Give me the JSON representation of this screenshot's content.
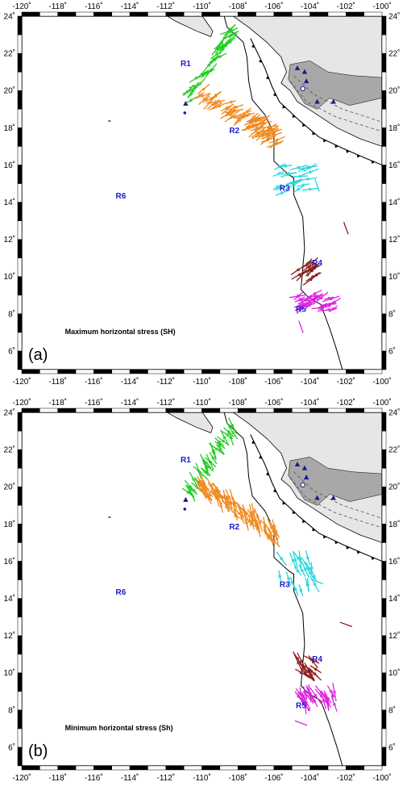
{
  "panels": [
    {
      "label": "(a)",
      "title": "Maximum horizontal stress (SH)",
      "variant": "SH"
    },
    {
      "label": "(b)",
      "title": "Minimum horizontal stress (Sh)",
      "variant": "Sh"
    }
  ],
  "axes": {
    "lon_range": [
      -120,
      -100
    ],
    "lat_range": [
      5,
      24
    ],
    "lon_ticks": [
      "-120˚",
      "-118˚",
      "-116˚",
      "-114˚",
      "-112˚",
      "-110˚",
      "-108˚",
      "-106˚",
      "-104˚",
      "-102˚",
      "-100˚"
    ],
    "lat_ticks": [
      "6˚",
      "8˚",
      "10˚",
      "12˚",
      "14˚",
      "16˚",
      "18˚",
      "20˚",
      "22˚",
      "24˚"
    ]
  },
  "regions": [
    {
      "name": "R1",
      "lon": -110.9,
      "lat": 21.3
    },
    {
      "name": "R2",
      "lon": -108.2,
      "lat": 17.7
    },
    {
      "name": "R3",
      "lon": -105.4,
      "lat": 14.6
    },
    {
      "name": "R4",
      "lon": -103.6,
      "lat": 10.6
    },
    {
      "name": "R5",
      "lon": -104.5,
      "lat": 8.1
    },
    {
      "name": "R6",
      "lon": -114.5,
      "lat": 14.2
    }
  ],
  "clusters": [
    {
      "region": "R1",
      "color": "#22cc22",
      "lon": [
        -110.8,
        -108.2
      ],
      "lat": [
        19.6,
        23.3
      ],
      "count": 36
    },
    {
      "region": "R2",
      "color": "#f08a20",
      "lon": [
        -110.1,
        -105.8
      ],
      "lat": [
        17.4,
        20.1
      ],
      "count": 75
    },
    {
      "region": "R3",
      "color": "#22d6dc",
      "lon": [
        -105.9,
        -103.7
      ],
      "lat": [
        14.4,
        16.2
      ],
      "count": 22
    },
    {
      "region": "R4",
      "color": "#8b1a1a",
      "lon": [
        -104.7,
        -103.6
      ],
      "lat": [
        9.8,
        10.8
      ],
      "count": 16
    },
    {
      "region": "R5",
      "color": "#e020e0",
      "lon": [
        -104.7,
        -102.6
      ],
      "lat": [
        8.2,
        9.1
      ],
      "count": 30
    }
  ],
  "colors": {
    "land_light": "#e6e6e6",
    "land_dark": "#a8a8a8",
    "volcano": "#1a1a8c",
    "boundary": "#000000"
  }
}
